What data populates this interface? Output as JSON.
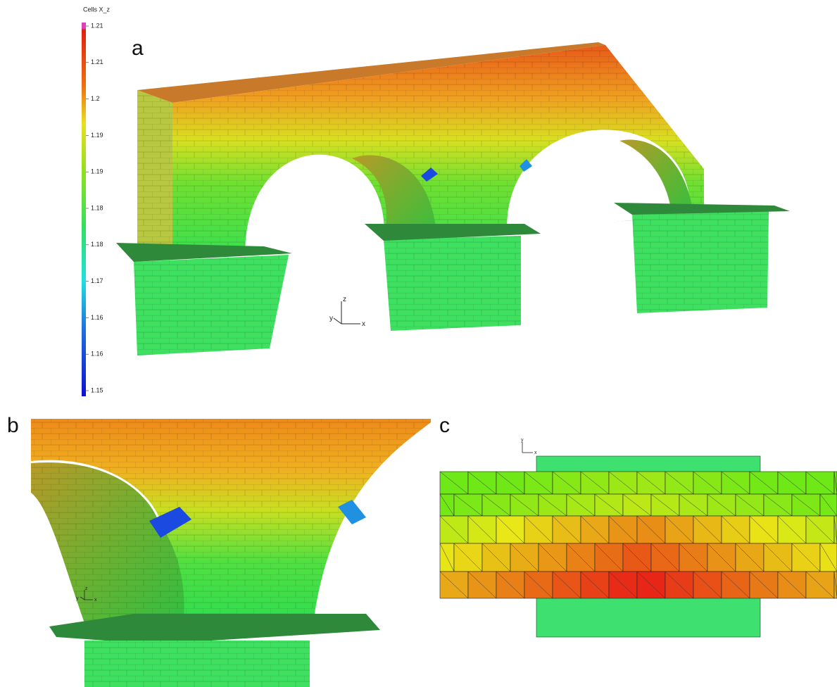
{
  "colorbar": {
    "title": "Cells X_z",
    "tick_labels": [
      "1.21",
      "1.21",
      "1.2",
      "1.19",
      "1.19",
      "1.18",
      "1.18",
      "1.17",
      "1.16",
      "1.16",
      "1.15"
    ]
  },
  "panels": [
    {
      "label": "a",
      "axes": [
        "z",
        "y",
        "x"
      ]
    },
    {
      "label": "b",
      "axes": [
        "z",
        "y",
        "x"
      ]
    },
    {
      "label": "c",
      "axes": [
        "y",
        "x"
      ]
    }
  ]
}
